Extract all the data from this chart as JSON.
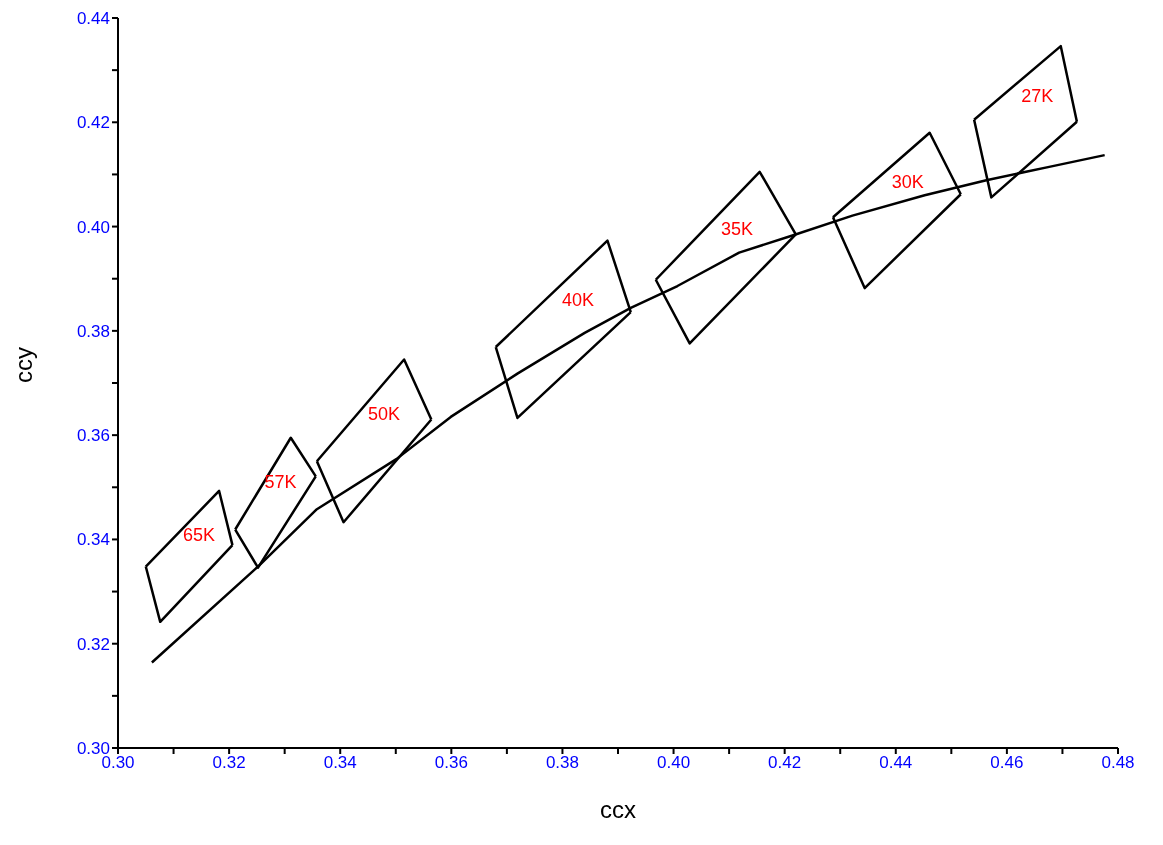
{
  "chart_data": {
    "type": "line",
    "xlabel": "ccx",
    "ylabel": "ccy",
    "xlim": [
      0.3,
      0.48
    ],
    "ylim": [
      0.3,
      0.44
    ],
    "xticks": [
      {
        "value": 0.3,
        "label": "0.30"
      },
      {
        "value": 0.31,
        "label": null
      },
      {
        "value": 0.32,
        "label": "0.32"
      },
      {
        "value": 0.33,
        "label": null
      },
      {
        "value": 0.34,
        "label": "0.34"
      },
      {
        "value": 0.35,
        "label": null
      },
      {
        "value": 0.36,
        "label": "0.36"
      },
      {
        "value": 0.37,
        "label": null
      },
      {
        "value": 0.38,
        "label": "0.38"
      },
      {
        "value": 0.39,
        "label": null
      },
      {
        "value": 0.4,
        "label": "0.40"
      },
      {
        "value": 0.41,
        "label": null
      },
      {
        "value": 0.42,
        "label": "0.42"
      },
      {
        "value": 0.43,
        "label": null
      },
      {
        "value": 0.44,
        "label": "0.44"
      },
      {
        "value": 0.45,
        "label": null
      },
      {
        "value": 0.46,
        "label": "0.46"
      },
      {
        "value": 0.47,
        "label": null
      },
      {
        "value": 0.48,
        "label": "0.48"
      }
    ],
    "yticks": [
      {
        "value": 0.3,
        "label": "0.30"
      },
      {
        "value": 0.31,
        "label": null
      },
      {
        "value": 0.32,
        "label": "0.32"
      },
      {
        "value": 0.33,
        "label": null
      },
      {
        "value": 0.34,
        "label": "0.34"
      },
      {
        "value": 0.35,
        "label": null
      },
      {
        "value": 0.36,
        "label": "0.36"
      },
      {
        "value": 0.37,
        "label": null
      },
      {
        "value": 0.38,
        "label": "0.38"
      },
      {
        "value": 0.39,
        "label": null
      },
      {
        "value": 0.4,
        "label": "0.40"
      },
      {
        "value": 0.41,
        "label": null
      },
      {
        "value": 0.42,
        "label": "0.42"
      },
      {
        "value": 0.43,
        "label": null
      },
      {
        "value": 0.44,
        "label": "0.44"
      }
    ],
    "grid": false,
    "legend": false,
    "marker": "none",
    "line_style": "solid",
    "series": [
      {
        "color": "#000000",
        "x": [
          0.3061,
          0.3252,
          0.3358,
          0.3501,
          0.3599,
          0.3719,
          0.384,
          0.3923,
          0.4007,
          0.4118,
          0.4214,
          0.4322,
          0.4452,
          0.4563,
          0.4674,
          0.4776
        ],
        "values": [
          0.3164,
          0.3348,
          0.3458,
          0.3554,
          0.3635,
          0.3718,
          0.3796,
          0.3844,
          0.3886,
          0.395,
          0.3983,
          0.4021,
          0.406,
          0.4089,
          0.4114,
          0.4137
        ]
      },
      {
        "name": "65K",
        "color": "#000000",
        "x": [
          0.305,
          0.3182,
          0.3206
        ],
        "values": [
          0.3348,
          0.3493,
          0.3389
        ]
      },
      {
        "color": "#000000",
        "x": [
          0.305,
          0.3076,
          0.3206
        ],
        "values": [
          0.3348,
          0.3242,
          0.3389
        ]
      },
      {
        "name": "57K",
        "color": "#000000",
        "x": [
          0.3211,
          0.3311,
          0.3356
        ],
        "values": [
          0.3419,
          0.3595,
          0.3521
        ]
      },
      {
        "color": "#000000",
        "x": [
          0.3211,
          0.3252,
          0.3356
        ],
        "values": [
          0.3419,
          0.3346,
          0.3521
        ]
      },
      {
        "name": "50K",
        "color": "#000000",
        "x": [
          0.3358,
          0.3515,
          0.3564
        ],
        "values": [
          0.355,
          0.3745,
          0.363
        ]
      },
      {
        "color": "#000000",
        "x": [
          0.3358,
          0.3406,
          0.3564
        ],
        "values": [
          0.355,
          0.3433,
          0.363
        ]
      },
      {
        "name": "40K",
        "color": "#000000",
        "x": [
          0.368,
          0.3881,
          0.3923
        ],
        "values": [
          0.3769,
          0.3973,
          0.3836
        ]
      },
      {
        "color": "#000000",
        "x": [
          0.368,
          0.3719,
          0.3923
        ],
        "values": [
          0.3769,
          0.3633,
          0.3836
        ]
      },
      {
        "name": "35K",
        "color": "#000000",
        "x": [
          0.3968,
          0.4155,
          0.422
        ],
        "values": [
          0.3898,
          0.4105,
          0.3985
        ]
      },
      {
        "color": "#000000",
        "x": [
          0.3968,
          0.4029,
          0.422
        ],
        "values": [
          0.3898,
          0.3776,
          0.3985
        ]
      },
      {
        "name": "30K",
        "color": "#000000",
        "x": [
          0.4287,
          0.4461,
          0.4517
        ],
        "values": [
          0.4018,
          0.418,
          0.4062
        ]
      },
      {
        "color": "#000000",
        "x": [
          0.4287,
          0.4344,
          0.4517
        ],
        "values": [
          0.4018,
          0.3882,
          0.4062
        ]
      },
      {
        "name": "27K",
        "color": "#000000",
        "x": [
          0.4541,
          0.4697,
          0.4726
        ],
        "values": [
          0.4205,
          0.4346,
          0.4201
        ]
      },
      {
        "color": "#000000",
        "x": [
          0.4541,
          0.4572,
          0.4726
        ],
        "values": [
          0.4205,
          0.4056,
          0.4201
        ]
      }
    ]
  }
}
